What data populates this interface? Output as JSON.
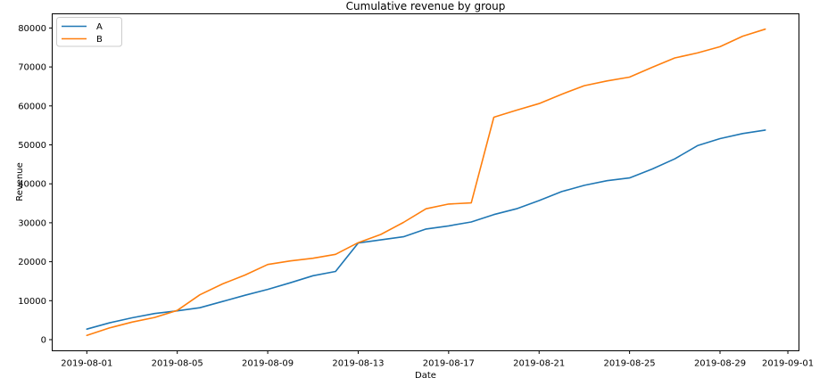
{
  "chart_data": {
    "type": "line",
    "title": "Cumulative revenue by group",
    "xlabel": "Date",
    "ylabel": "Revenue",
    "grid": false,
    "background_color": "#ffffff",
    "x": [
      "2019-08-01",
      "2019-08-02",
      "2019-08-03",
      "2019-08-04",
      "2019-08-05",
      "2019-08-06",
      "2019-08-07",
      "2019-08-08",
      "2019-08-09",
      "2019-08-10",
      "2019-08-11",
      "2019-08-12",
      "2019-08-13",
      "2019-08-14",
      "2019-08-15",
      "2019-08-16",
      "2019-08-17",
      "2019-08-18",
      "2019-08-19",
      "2019-08-20",
      "2019-08-21",
      "2019-08-22",
      "2019-08-23",
      "2019-08-24",
      "2019-08-25",
      "2019-08-26",
      "2019-08-27",
      "2019-08-28",
      "2019-08-29",
      "2019-08-30",
      "2019-08-31"
    ],
    "series": [
      {
        "name": "A",
        "color": "#1f77b4",
        "values": [
          2700,
          4300,
          5600,
          6700,
          7400,
          8200,
          9800,
          11400,
          12900,
          14600,
          16400,
          17500,
          24800,
          25600,
          26400,
          28400,
          29200,
          30200,
          32100,
          33600,
          35700,
          38000,
          39600,
          40800,
          41500,
          43800,
          46400,
          49800,
          51600,
          52900,
          53800
        ]
      },
      {
        "name": "B",
        "color": "#ff7f0e",
        "values": [
          1100,
          3000,
          4500,
          5700,
          7500,
          11500,
          14300,
          16600,
          19300,
          20200,
          20900,
          21900,
          24900,
          27000,
          30100,
          33600,
          34800,
          35100,
          57100,
          58900,
          60600,
          63000,
          65200,
          66400,
          67400,
          69900,
          72300,
          73600,
          75200,
          77900,
          79700
        ]
      }
    ],
    "x_axis": {
      "tick_labels": [
        "2019-08-01",
        "2019-08-05",
        "2019-08-09",
        "2019-08-13",
        "2019-08-17",
        "2019-08-21",
        "2019-08-25",
        "2019-08-29",
        "2019-09-01"
      ]
    },
    "y_axis": {
      "ticks": [
        0,
        10000,
        20000,
        30000,
        40000,
        50000,
        60000,
        70000,
        80000
      ],
      "range": [
        -3200,
        83600
      ]
    },
    "legend": {
      "position": "upper-left",
      "entries": [
        "A",
        "B"
      ]
    }
  }
}
